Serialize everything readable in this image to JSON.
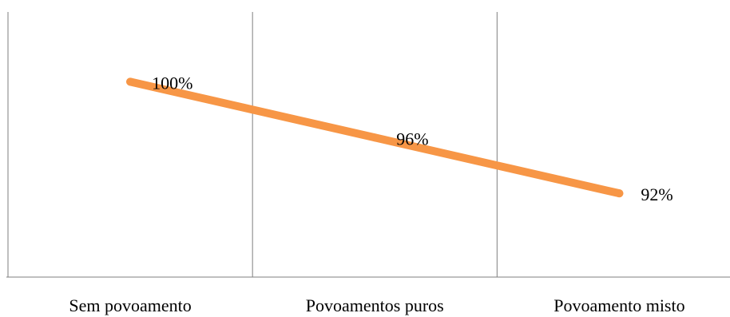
{
  "chart_data": {
    "type": "line",
    "categories": [
      "Sem povoamento",
      "Povoamentos puros",
      "Povoamento misto"
    ],
    "series": [
      {
        "values": [
          100,
          96,
          92
        ],
        "data_labels": [
          "100%",
          "96%",
          "92%"
        ],
        "color": "#f79646"
      }
    ],
    "value_unit": "%",
    "ylim": [
      86,
      105
    ],
    "grid": "vertical category dividers",
    "legend": "none",
    "colors": {
      "line": "#f79646",
      "axis": "#7f7f7f",
      "text": "#000000"
    }
  }
}
